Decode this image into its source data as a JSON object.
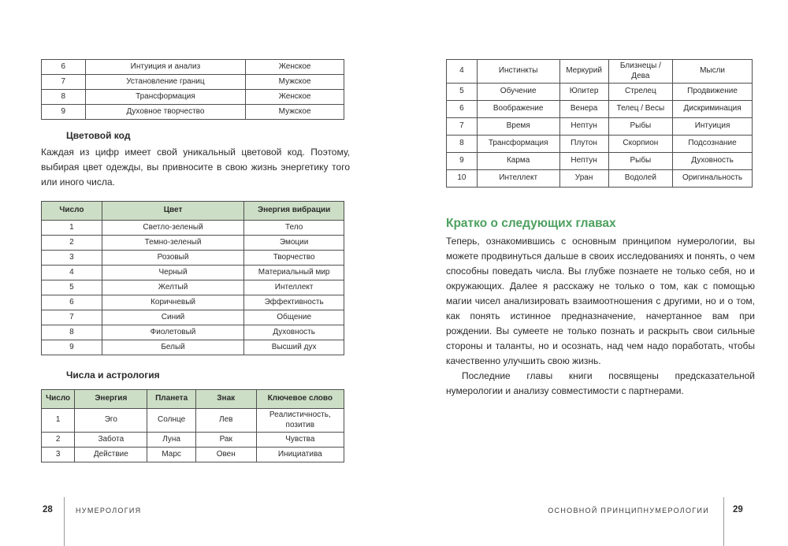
{
  "page_left": {
    "gender_table": {
      "rows": [
        [
          "6",
          "Интуиция и анализ",
          "Женское"
        ],
        [
          "7",
          "Установление границ",
          "Мужское"
        ],
        [
          "8",
          "Трансформация",
          "Женское"
        ],
        [
          "9",
          "Духовное творчество",
          "Мужское"
        ]
      ]
    },
    "color_section": {
      "heading": "Цветовой код",
      "paragraph": "Каждая из цифр имеет свой уникальный цветовой код. Поэтому, выбирая цвет одежды, вы привносите в свою жизнь энергетику того или иного числа."
    },
    "color_table": {
      "headers": [
        "Число",
        "Цвет",
        "Энергия вибрации"
      ],
      "rows": [
        [
          "1",
          "Светло-зеленый",
          "Тело"
        ],
        [
          "2",
          "Темно-зеленый",
          "Эмоции"
        ],
        [
          "3",
          "Розовый",
          "Творчество"
        ],
        [
          "4",
          "Черный",
          "Материальный мир"
        ],
        [
          "5",
          "Желтый",
          "Интеллект"
        ],
        [
          "6",
          "Коричневый",
          "Эффективность"
        ],
        [
          "7",
          "Синий",
          "Общение"
        ],
        [
          "8",
          "Фиолетовый",
          "Духовность"
        ],
        [
          "9",
          "Белый",
          "Высший дух"
        ]
      ]
    },
    "astro_section": {
      "heading": "Числа и астрология"
    },
    "astro_table": {
      "headers": [
        "Число",
        "Энергия",
        "Планета",
        "Знак",
        "Ключевое слово"
      ],
      "rows": [
        [
          "1",
          "Эго",
          "Солнце",
          "Лев",
          "Реалистичность, позитив"
        ],
        [
          "2",
          "Забота",
          "Луна",
          "Рак",
          "Чувства"
        ],
        [
          "3",
          "Действие",
          "Марс",
          "Овен",
          "Инициатива"
        ]
      ]
    },
    "footer": {
      "page_number": "28",
      "running_title": "НУМЕРОЛОГИЯ"
    }
  },
  "page_right": {
    "astro_table_cont": {
      "rows": [
        [
          "4",
          "Инстинкты",
          "Меркурий",
          "Близнецы / Дева",
          "Мысли"
        ],
        [
          "5",
          "Обучение",
          "Юпитер",
          "Стрелец",
          "Продвижение"
        ],
        [
          "6",
          "Воображение",
          "Венера",
          "Телец / Весы",
          "Дискриминация"
        ],
        [
          "7",
          "Время",
          "Нептун",
          "Рыбы",
          "Интуиция"
        ],
        [
          "8",
          "Трансформация",
          "Плутон",
          "Скорпион",
          "Подсознание"
        ],
        [
          "9",
          "Карма",
          "Нептун",
          "Рыбы",
          "Духовность"
        ],
        [
          "10",
          "Интеллект",
          "Уран",
          "Водолей",
          "Оригинальность"
        ]
      ]
    },
    "chapters_section": {
      "heading": "Кратко о следующих главах",
      "paragraph1": "Теперь, ознакомившись с основным принципом нумерологии, вы можете продвинуться дальше в своих исследованиях и понять, о чем способны поведать числа. Вы глубже познаете не только себя, но и окружающих. Далее я расскажу не только о том, как с помощью магии чисел анализировать взаимоотношения с другими, но и о том, как понять истинное предназначение, начертанное вам при рождении. Вы сумеете не только познать и раскрыть свои сильные стороны и таланты, но и осознать, над чем надо поработать, чтобы качественно улучшить свою жизнь.",
      "paragraph2": "Последние главы книги посвящены предсказательной нумерологии и анализу совместимости с партнерами."
    },
    "footer": {
      "running_title": "ОСНОВНОЙ ПРИНЦИПНУМЕРОЛОГИИ",
      "page_number": "29"
    }
  },
  "colors": {
    "table_header_bg": "#cddec6",
    "accent_green": "#4da05f",
    "table_border": "#4f4f4f",
    "body_text": "#2b2b2b",
    "footer_rule": "#9a9a9a"
  }
}
